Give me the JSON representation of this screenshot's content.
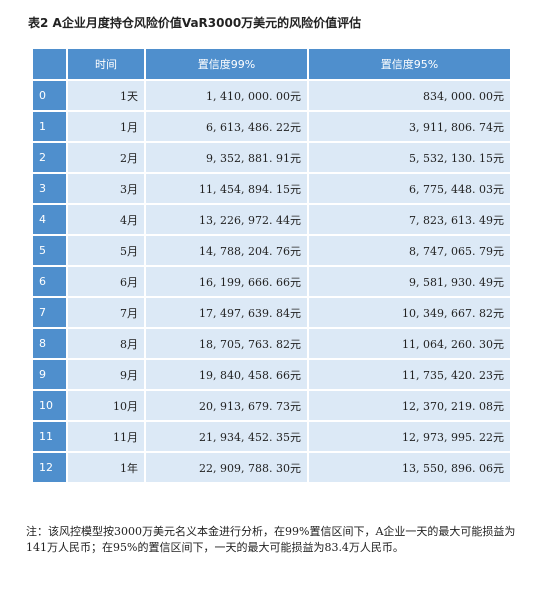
{
  "caption": "表2  A企业月度持仓风险价值VaR3000万美元的风险价值评估",
  "table": {
    "headers": [
      "",
      "时间",
      "置信度99%",
      "置信度95%"
    ],
    "rows": [
      {
        "index": "0",
        "period": "1天",
        "var99": "1, 410, 000. 00元",
        "var95": "834, 000. 00元"
      },
      {
        "index": "1",
        "period": "1月",
        "var99": "6, 613, 486. 22元",
        "var95": "3, 911, 806. 74元"
      },
      {
        "index": "2",
        "period": "2月",
        "var99": "9, 352, 881. 91元",
        "var95": "5, 532, 130. 15元"
      },
      {
        "index": "3",
        "period": "3月",
        "var99": "11, 454, 894. 15元",
        "var95": "6, 775, 448. 03元"
      },
      {
        "index": "4",
        "period": "4月",
        "var99": "13, 226, 972. 44元",
        "var95": "7, 823, 613. 49元"
      },
      {
        "index": "5",
        "period": "5月",
        "var99": "14, 788, 204. 76元",
        "var95": "8, 747, 065. 79元"
      },
      {
        "index": "6",
        "period": "6月",
        "var99": "16, 199, 666. 66元",
        "var95": "9, 581, 930. 49元"
      },
      {
        "index": "7",
        "period": "7月",
        "var99": "17, 497, 639. 84元",
        "var95": "10, 349, 667. 82元"
      },
      {
        "index": "8",
        "period": "8月",
        "var99": "18, 705, 763. 82元",
        "var95": "11, 064, 260. 30元"
      },
      {
        "index": "9",
        "period": "9月",
        "var99": "19, 840, 458. 66元",
        "var95": "11, 735, 420. 23元"
      },
      {
        "index": "10",
        "period": "10月",
        "var99": "20, 913, 679. 73元",
        "var95": "12, 370, 219. 08元"
      },
      {
        "index": "11",
        "period": "11月",
        "var99": "21, 934, 452. 35元",
        "var95": "12, 973, 995. 22元"
      },
      {
        "index": "12",
        "period": "1年",
        "var99": "22, 909, 788. 30元",
        "var95": "13, 550, 896. 06元"
      }
    ]
  },
  "note": "注：该风控模型按3000万美元名义本金进行分析，在99%置信区间下，A企业一天的最大可能损益为141万人民币；在95%的置信区间下，一天的最大可能损益为83.4万人民币。",
  "colors": {
    "header_bg": "#4f8fcd",
    "cell_bg": "#dce9f6"
  }
}
